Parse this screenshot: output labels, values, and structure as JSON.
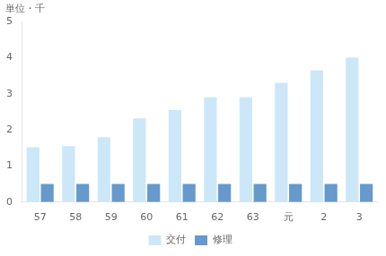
{
  "chart_data": {
    "type": "bar",
    "categories": [
      "57",
      "58",
      "59",
      "60",
      "61",
      "62",
      "63",
      "元",
      "2",
      "3"
    ],
    "series": [
      {
        "name": "交付",
        "color": "#cce8f8",
        "values": [
          1.52,
          1.55,
          1.8,
          2.32,
          2.55,
          2.9,
          2.9,
          3.3,
          3.65,
          4.0
        ]
      },
      {
        "name": "修理",
        "color": "#6699cc",
        "values": [
          0.5,
          0.5,
          0.5,
          0.5,
          0.5,
          0.5,
          0.5,
          0.5,
          0.5,
          0.5
        ]
      }
    ],
    "ylim": [
      0,
      5
    ],
    "yticks": [
      0,
      1,
      2,
      3,
      4,
      5
    ],
    "grid": false,
    "legend": "bottom",
    "annotations": [
      "単位・千"
    ]
  }
}
